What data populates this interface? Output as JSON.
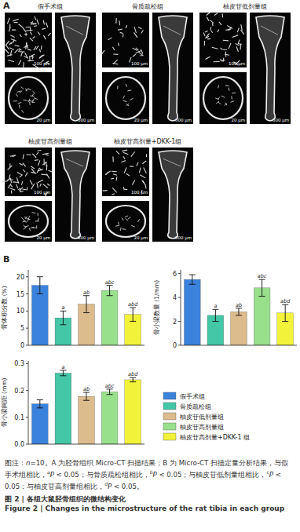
{
  "panel_labels": {
    "a": "A",
    "b": "B"
  },
  "micro_ct": {
    "groups": [
      {
        "name": "假手术组",
        "scale_bars": [
          "100 μm",
          "20 μm",
          "500 μm"
        ]
      },
      {
        "name": "骨质疏松组",
        "scale_bars": [
          "100 μm",
          "20 μm",
          "500 μm"
        ]
      },
      {
        "name": "柚皮苷低剂量组",
        "scale_bars": [
          "100 μm",
          "20 μm",
          "500 μm"
        ]
      },
      {
        "name": "柚皮苷高剂量组",
        "scale_bars": [
          "100 μm",
          "20 μm",
          "500 μm"
        ]
      },
      {
        "name": "柚皮苷高剂量+DKK-1组",
        "scale_bars": [
          "100 μm",
          "20 μm",
          "500 μm"
        ]
      }
    ]
  },
  "chart_data": [
    {
      "type": "bar",
      "ylabel": "骨体积分数 (%)",
      "categories": [
        null,
        null,
        null,
        null,
        null
      ],
      "values": [
        17.5,
        8,
        12,
        16,
        9
      ],
      "errors": [
        2.5,
        2,
        2.5,
        1.5,
        2
      ],
      "significance": [
        null,
        "a",
        "ab",
        "abc",
        "abd"
      ],
      "colors": [
        "#3b82dc",
        "#44c7a6",
        "#dcbb8c",
        "#98e08c",
        "#f2f23a"
      ],
      "ylim": [
        0,
        22
      ],
      "yticks": [
        0,
        5,
        10,
        15,
        20
      ],
      "tick_labels": "y",
      "grid": false
    },
    {
      "type": "bar",
      "ylabel": "骨小梁数量 (1/mm)",
      "categories": [
        null,
        null,
        null,
        null,
        null
      ],
      "values": [
        5.5,
        2.5,
        2.8,
        4.8,
        2.7
      ],
      "errors": [
        0.4,
        0.5,
        0.3,
        0.7,
        0.7
      ],
      "significance": [
        null,
        "a",
        "ab",
        "abc",
        "abd"
      ],
      "colors": [
        "#3b82dc",
        "#44c7a6",
        "#dcbb8c",
        "#98e08c",
        "#f2f23a"
      ],
      "ylim": [
        0,
        6.3
      ],
      "yticks": [
        0,
        2,
        4,
        6
      ],
      "tick_labels": "y",
      "grid": false
    },
    {
      "type": "bar",
      "ylabel": "骨小梁间距 (mm)",
      "categories": [
        null,
        null,
        null,
        null,
        null
      ],
      "values": [
        0.15,
        0.265,
        0.178,
        0.195,
        0.24
      ],
      "errors": [
        0.015,
        0.01,
        0.015,
        0.01,
        0.008
      ],
      "significance": [
        null,
        "a",
        "ab",
        "abc",
        "abd"
      ],
      "colors": [
        "#3b82dc",
        "#44c7a6",
        "#dcbb8c",
        "#98e08c",
        "#f2f23a"
      ],
      "ylim": [
        0,
        0.31
      ],
      "yticks": [
        {
          "value": 0,
          "label": "0.0"
        },
        0.1,
        0.2,
        0.3
      ],
      "tick_labels": "y",
      "grid": false
    }
  ],
  "legend": {
    "entries": [
      {
        "name": "假手术组",
        "color": "#3b82dc"
      },
      {
        "name": "骨质疏松组",
        "color": "#44c7a6"
      },
      {
        "name": "柚皮苷低剂量组",
        "color": "#dcbb8c"
      },
      {
        "name": "柚皮苷高剂量组",
        "color": "#98e08c"
      },
      {
        "name": "柚皮苷高剂量+DKK-1 组",
        "color": "#f2f23a"
      }
    ]
  },
  "caption": {
    "note": [
      {
        "text": "图注："
      },
      {
        "italic": "n"
      },
      {
        "text": "=10。A 为胫骨组织 Micro-CT 扫描结果；B 为 Micro-CT 扫描定量分析结果，与假手术组相比，"
      },
      {
        "sup": "a"
      },
      {
        "italic": "P"
      },
      {
        "text": " < 0.05；与骨质疏松组相比，"
      },
      {
        "sup": "b"
      },
      {
        "italic": "P"
      },
      {
        "text": " < 0.05；与柚皮苷低剂量组相比，"
      },
      {
        "sup": "c"
      },
      {
        "italic": "P"
      },
      {
        "text": " < 0.05；与柚皮苷高剂量组相比，"
      },
      {
        "sup": "d"
      },
      {
        "italic": "P"
      },
      {
        "text": " < 0.05。"
      }
    ],
    "title_cn": "图 2 | 各组大鼠胫骨组织的微结构变化",
    "title_en": "Figure 2 | Changes in the microstructure of the rat tibia in each group"
  }
}
